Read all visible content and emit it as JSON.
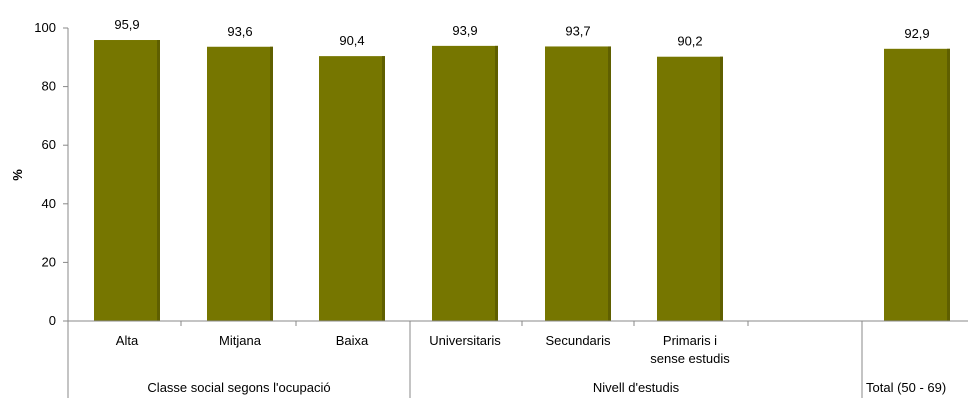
{
  "chart_data": {
    "type": "bar",
    "ylabel": "%",
    "ylim": [
      0,
      100
    ],
    "yticks": [
      0,
      20,
      40,
      60,
      80,
      100
    ],
    "categories": [
      "Alta",
      "Mitjana",
      "Baixa",
      "Universitaris",
      "Secundaris",
      "Primaris i sense estudis",
      "Total (50 - 69)"
    ],
    "category_lines": [
      [
        "Alta"
      ],
      [
        "Mitjana"
      ],
      [
        "Baixa"
      ],
      [
        "Universitaris"
      ],
      [
        "Secundaris"
      ],
      [
        "Primaris i",
        "sense estudis"
      ],
      [
        ""
      ]
    ],
    "values": [
      95.9,
      93.6,
      90.4,
      93.9,
      93.7,
      90.2,
      92.9
    ],
    "data_labels": [
      "95,9",
      "93,6",
      "90,4",
      "93,9",
      "93,7",
      "90,2",
      "92,9"
    ],
    "groups": [
      {
        "label": "Classe social segons l'ocupació",
        "categories": [
          0,
          1,
          2
        ]
      },
      {
        "label": "Nivell d'estudis",
        "categories": [
          3,
          4,
          5
        ]
      },
      {
        "label": "Total (50 - 69)",
        "categories": [
          6
        ]
      }
    ],
    "bar_color": "#767600",
    "grid": false
  }
}
